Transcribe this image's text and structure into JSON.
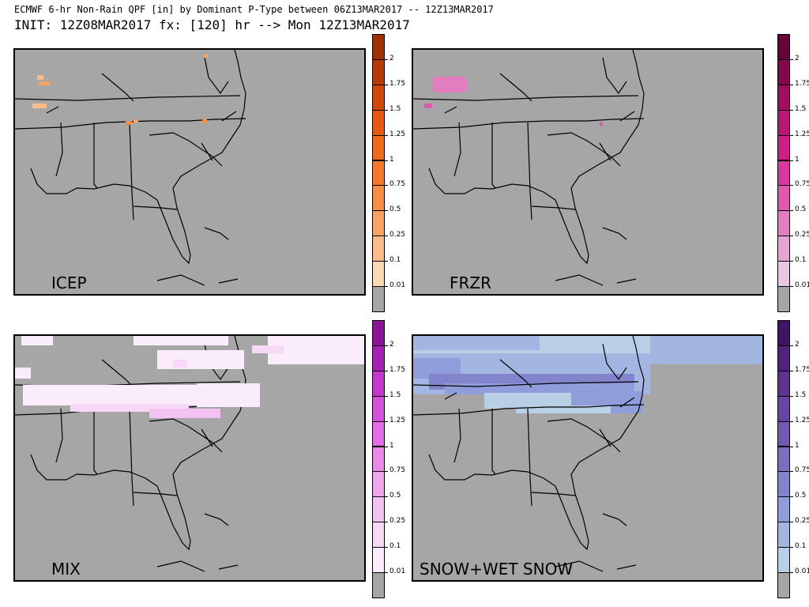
{
  "title_line1": "ECMWF 6-hr Non-Rain QPF [in] by Dominant P-Type between 06Z13MAR2017 -- 12Z13MAR2017",
  "title_line2": "INIT: 12Z08MAR2017 fx: [120] hr --> Mon 12Z13MAR2017",
  "colorbar_ticks": [
    "2",
    "1.75",
    "1.5",
    "1.25",
    "1",
    "0.75",
    "0.5",
    "0.25",
    "0.1",
    "0.01"
  ],
  "panels": [
    {
      "label": "ICEP",
      "colors": [
        "#a6a6a6",
        "#fcd8b4",
        "#fbbc8a",
        "#f9a363",
        "#f88d44",
        "#f5792b",
        "#ef6a1b",
        "#e35a10",
        "#cf4a08",
        "#b83b05",
        "#9c3203"
      ]
    },
    {
      "label": "FRZR",
      "colors": [
        "#a6a6a6",
        "#e6c6e0",
        "#e6a3d1",
        "#e27ec0",
        "#de58ad",
        "#d9389c",
        "#ce1f87",
        "#b81773",
        "#9e0f5e",
        "#82084b",
        "#66043a"
      ]
    },
    {
      "label": "MIX",
      "colors": [
        "#a6a6a6",
        "#fbecfb",
        "#f7d9f7",
        "#f3c2f3",
        "#eea7ef",
        "#e98ae9",
        "#e36de6",
        "#d651dc",
        "#c239cb",
        "#a622b2",
        "#8c1496"
      ]
    },
    {
      "label": "SNOW+WET SNOW",
      "colors": [
        "#a6a6a6",
        "#b8d0e6",
        "#a3b6e1",
        "#8f9ddb",
        "#8385cc",
        "#7a6ebf",
        "#7059b1",
        "#6845a2",
        "#5d338f",
        "#4f227b",
        "#3f1464"
      ]
    }
  ]
}
